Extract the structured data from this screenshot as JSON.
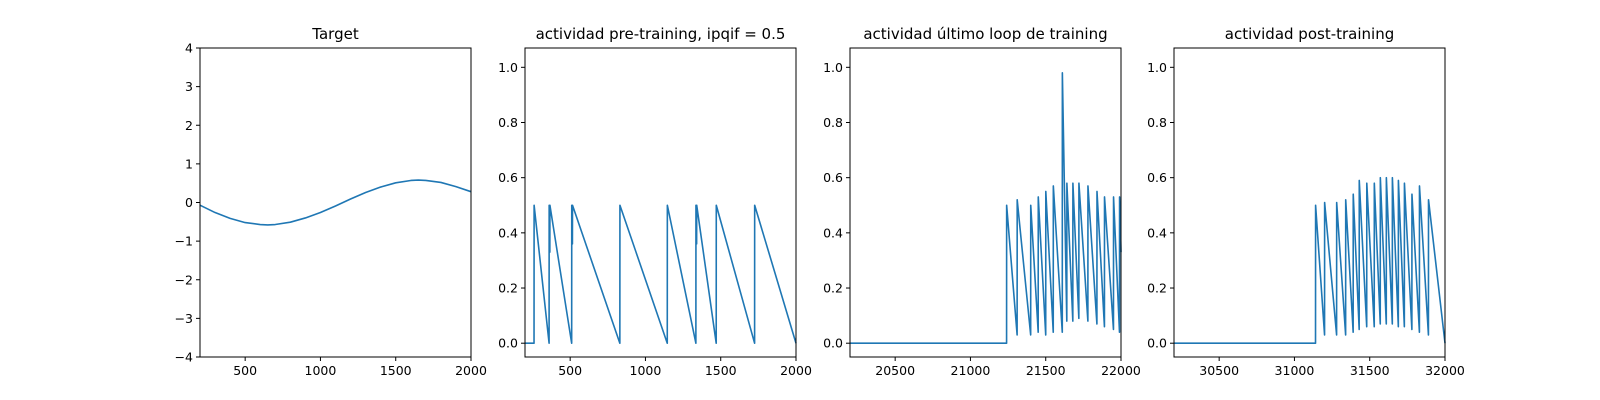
{
  "chart_data": [
    {
      "type": "line",
      "title": "Target",
      "xlim": [
        200,
        2000
      ],
      "ylim": [
        -4,
        4
      ],
      "xticks": [
        500,
        1000,
        1500,
        2000
      ],
      "yticks": [
        -4,
        -3,
        -2,
        -1,
        0,
        1,
        2,
        3,
        4
      ],
      "series": [
        {
          "x": [
            200,
            300,
            400,
            500,
            600,
            650,
            700,
            800,
            900,
            1000,
            1100,
            1200,
            1300,
            1400,
            1500,
            1600,
            1650,
            1700,
            1800,
            1900,
            2000
          ],
          "y": [
            -0.07,
            -0.26,
            -0.41,
            -0.52,
            -0.57,
            -0.58,
            -0.57,
            -0.51,
            -0.4,
            -0.26,
            -0.09,
            0.09,
            0.26,
            0.4,
            0.51,
            0.57,
            0.58,
            0.57,
            0.52,
            0.41,
            0.28
          ]
        }
      ]
    },
    {
      "type": "line",
      "title": "actividad pre-training, ipqif = 0.5",
      "xlim": [
        200,
        2000
      ],
      "ylim": [
        -0.05,
        1.07
      ],
      "xticks": [
        500,
        1000,
        1500,
        2000
      ],
      "yticks": [
        0.0,
        0.2,
        0.4,
        0.6,
        0.8,
        1.0
      ],
      "series": [
        {
          "x": [
            200,
            260,
            260.5,
            360,
            360.5,
            365,
            365.5,
            510,
            510.5,
            515,
            515.5,
            830,
            830.5,
            1145,
            1145.5,
            1335,
            1335.5,
            1340,
            1340.5,
            1470,
            1470.5,
            1725,
            1725.5,
            2000
          ],
          "y": [
            0,
            0,
            0.5,
            0,
            0.5,
            0.33,
            0.5,
            0,
            0.5,
            0.36,
            0.5,
            0,
            0.5,
            0,
            0.5,
            0,
            0.5,
            0.36,
            0.5,
            0,
            0.5,
            0,
            0.5,
            0
          ]
        }
      ]
    },
    {
      "type": "line",
      "title": "actividad último loop de training",
      "xlim": [
        20200,
        22000
      ],
      "ylim": [
        -0.05,
        1.07
      ],
      "xticks": [
        20500,
        21000,
        21500,
        22000
      ],
      "yticks": [
        0.0,
        0.2,
        0.4,
        0.6,
        0.8,
        1.0
      ],
      "series": [
        {
          "x": [
            20200,
            21240,
            21240.5,
            21310,
            21310.5,
            21400,
            21400.5,
            21450,
            21450.5,
            21500,
            21500.5,
            21550,
            21550.5,
            21610,
            21610.5,
            21640,
            21640.5,
            21680,
            21680.5,
            21720,
            21720.5,
            21780,
            21780.5,
            21840,
            21840.5,
            21890,
            21890.5,
            21950,
            21950.5,
            21990,
            21990.5,
            22000
          ],
          "y": [
            0,
            0,
            0.5,
            0.03,
            0.52,
            0.03,
            0.5,
            0.04,
            0.53,
            0.03,
            0.55,
            0.04,
            0.57,
            0.04,
            0.98,
            0.08,
            0.58,
            0.08,
            0.58,
            0.09,
            0.58,
            0.08,
            0.57,
            0.07,
            0.55,
            0.06,
            0.53,
            0.05,
            0.53,
            0.04,
            0.53,
            0.33
          ]
        }
      ]
    },
    {
      "type": "line",
      "title": "actividad post-training",
      "xlim": [
        30200,
        32000
      ],
      "ylim": [
        -0.05,
        1.07
      ],
      "xticks": [
        30500,
        31000,
        31500,
        32000
      ],
      "yticks": [
        0.0,
        0.2,
        0.4,
        0.6,
        0.8,
        1.0
      ],
      "series": [
        {
          "x": [
            30200,
            31140,
            31140.5,
            31200,
            31200.5,
            31280,
            31280.5,
            31340,
            31340.5,
            31390,
            31390.5,
            31430,
            31430.5,
            31480,
            31480.5,
            31530,
            31530.5,
            31570,
            31570.5,
            31610,
            31610.5,
            31650,
            31650.5,
            31690,
            31690.5,
            31730,
            31730.5,
            31780,
            31780.5,
            31830,
            31830.5,
            31890,
            31890.5,
            32000
          ],
          "y": [
            0,
            0,
            0.5,
            0.03,
            0.51,
            0.03,
            0.51,
            0.03,
            0.52,
            0.04,
            0.54,
            0.05,
            0.59,
            0.06,
            0.58,
            0.06,
            0.58,
            0.07,
            0.6,
            0.07,
            0.6,
            0.07,
            0.6,
            0.06,
            0.59,
            0.06,
            0.58,
            0.05,
            0.54,
            0.04,
            0.57,
            0.03,
            0.52,
            0
          ]
        }
      ]
    }
  ]
}
